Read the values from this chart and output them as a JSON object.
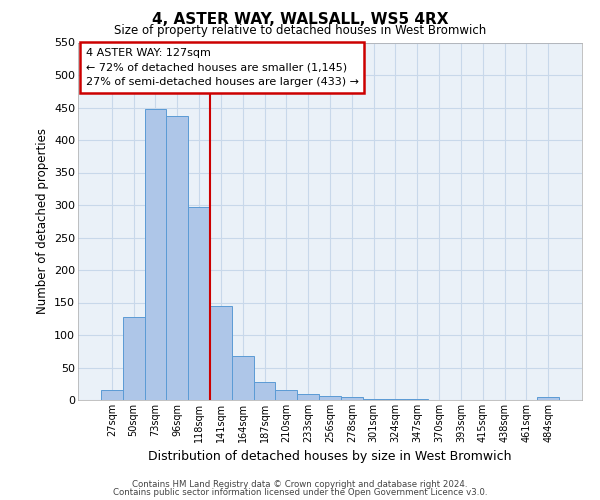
{
  "title": "4, ASTER WAY, WALSALL, WS5 4RX",
  "subtitle": "Size of property relative to detached houses in West Bromwich",
  "xlabel": "Distribution of detached houses by size in West Bromwich",
  "ylabel": "Number of detached properties",
  "bar_labels": [
    "27sqm",
    "50sqm",
    "73sqm",
    "96sqm",
    "118sqm",
    "141sqm",
    "164sqm",
    "187sqm",
    "210sqm",
    "233sqm",
    "256sqm",
    "278sqm",
    "301sqm",
    "324sqm",
    "347sqm",
    "370sqm",
    "393sqm",
    "415sqm",
    "438sqm",
    "461sqm",
    "484sqm"
  ],
  "bar_values": [
    15,
    128,
    447,
    437,
    297,
    145,
    68,
    28,
    15,
    10,
    6,
    5,
    1,
    1,
    1,
    0,
    0,
    0,
    0,
    0,
    5
  ],
  "bar_color": "#aec6e8",
  "bar_edge_color": "#5b9bd5",
  "ylim": [
    0,
    550
  ],
  "yticks": [
    0,
    50,
    100,
    150,
    200,
    250,
    300,
    350,
    400,
    450,
    500,
    550
  ],
  "vline_x": 4.5,
  "annotation_title": "4 ASTER WAY: 127sqm",
  "annotation_line1": "← 72% of detached houses are smaller (1,145)",
  "annotation_line2": "27% of semi-detached houses are larger (433) →",
  "annotation_box_color": "#ffffff",
  "annotation_box_edge": "#cc0000",
  "vline_color": "#cc0000",
  "grid_color": "#c8d8ea",
  "background_color": "#eaf1f8",
  "footer_line1": "Contains HM Land Registry data © Crown copyright and database right 2024.",
  "footer_line2": "Contains public sector information licensed under the Open Government Licence v3.0."
}
